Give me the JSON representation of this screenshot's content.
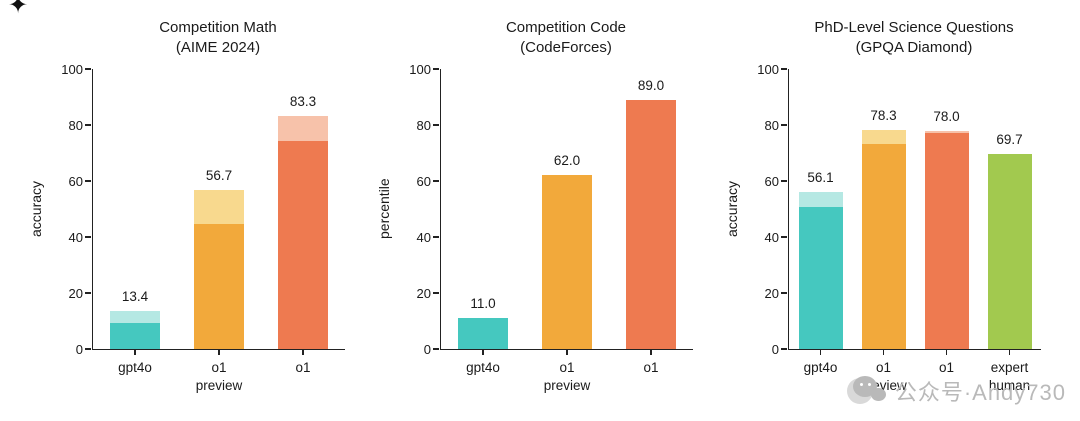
{
  "figure": {
    "background": "#ffffff",
    "sparkle": "✦",
    "watermark": {
      "text": "公众号·Andy730",
      "color": "#b9b9b9",
      "icon": "wechat-icon"
    }
  },
  "chart_data": [
    {
      "type": "bar",
      "title_lines": [
        "Competition Math",
        "(AIME 2024)"
      ],
      "ylabel": "accuracy",
      "ylim": [
        0,
        100
      ],
      "yticks": [
        0,
        20,
        40,
        60,
        80,
        100
      ],
      "grid": false,
      "categories": [
        [
          "gpt4o"
        ],
        [
          "o1",
          "preview"
        ],
        [
          "o1"
        ]
      ],
      "values": [
        13.4,
        56.7,
        83.3
      ],
      "solid_values": [
        9.3,
        44.6,
        74.4
      ],
      "labels": [
        "13.4",
        "56.7",
        "83.3"
      ],
      "bar_colors": [
        "#45c8bf",
        "#f2a93b",
        "#ee7a50"
      ],
      "bar_colors_light": [
        "#b5e8e3",
        "#f8d98e",
        "#f7c2aa"
      ]
    },
    {
      "type": "bar",
      "title_lines": [
        "Competition Code",
        "(CodeForces)"
      ],
      "ylabel": "percentile",
      "ylim": [
        0,
        100
      ],
      "yticks": [
        0,
        20,
        40,
        60,
        80,
        100
      ],
      "grid": false,
      "categories": [
        [
          "gpt4o"
        ],
        [
          "o1",
          "preview"
        ],
        [
          "o1"
        ]
      ],
      "values": [
        11.0,
        62.0,
        89.0
      ],
      "solid_values": [
        11.0,
        62.0,
        89.0
      ],
      "labels": [
        "11.0",
        "62.0",
        "89.0"
      ],
      "bar_colors": [
        "#45c8bf",
        "#f2a93b",
        "#ee7a50"
      ],
      "bar_colors_light": [
        "#45c8bf",
        "#f2a93b",
        "#ee7a50"
      ]
    },
    {
      "type": "bar",
      "title_lines": [
        "PhD-Level Science Questions",
        "(GPQA Diamond)"
      ],
      "ylabel": "accuracy",
      "ylim": [
        0,
        100
      ],
      "yticks": [
        0,
        20,
        40,
        60,
        80,
        100
      ],
      "grid": false,
      "categories": [
        [
          "gpt4o"
        ],
        [
          "o1",
          "preview"
        ],
        [
          "o1"
        ],
        [
          "expert",
          "human"
        ]
      ],
      "values": [
        56.1,
        78.3,
        78.0,
        69.7
      ],
      "solid_values": [
        50.6,
        73.3,
        77.3,
        69.7
      ],
      "labels": [
        "56.1",
        "78.3",
        "78.0",
        "69.7"
      ],
      "bar_colors": [
        "#45c8bf",
        "#f2a93b",
        "#ee7a50",
        "#a2c94f"
      ],
      "bar_colors_light": [
        "#b5e8e3",
        "#f8d98e",
        "#f7c2aa",
        "#a2c94f"
      ]
    }
  ]
}
